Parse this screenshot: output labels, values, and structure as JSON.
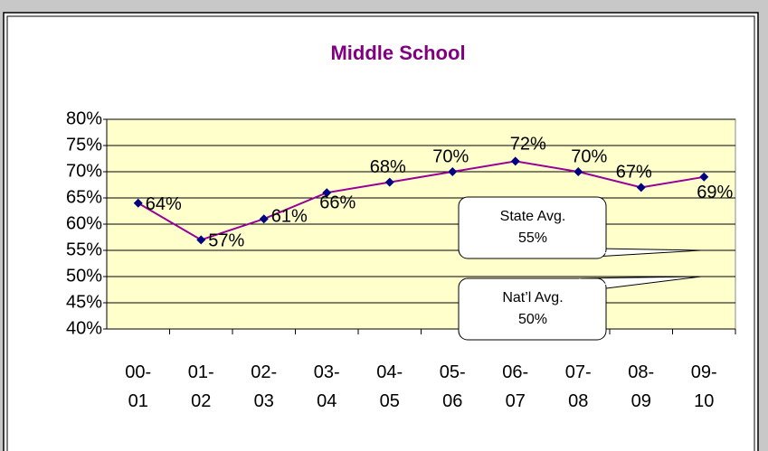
{
  "chart_data": {
    "type": "line",
    "title": "Middle School",
    "categories": [
      "00-\n01",
      "01-\n02",
      "02-\n03",
      "03-\n04",
      "04-\n05",
      "05-\n06",
      "06-\n07",
      "07-\n08",
      "08-\n09",
      "09-\n10"
    ],
    "series": [
      {
        "color": "#990099",
        "marker_color": "#000080",
        "values": [
          64,
          57,
          61,
          66,
          68,
          70,
          72,
          70,
          67,
          69
        ],
        "value_labels": [
          "64%",
          "57%",
          "61%",
          "66%",
          "68%",
          "70%",
          "72%",
          "70%",
          "67%",
          "69%"
        ]
      }
    ],
    "ylim": [
      40,
      80
    ],
    "yticks": [
      {
        "value": 40,
        "label": "40%"
      },
      {
        "value": 45,
        "label": "45%"
      },
      {
        "value": 50,
        "label": "50%"
      },
      {
        "value": 55,
        "label": "55%"
      },
      {
        "value": 60,
        "label": "60%"
      },
      {
        "value": 65,
        "label": "65%"
      },
      {
        "value": 70,
        "label": "70%"
      },
      {
        "value": 75,
        "label": "75%"
      },
      {
        "value": 80,
        "label": "80%"
      }
    ],
    "grid": true,
    "annotations": [
      {
        "text": "State Avg.",
        "value": 55,
        "value_label": "55%"
      },
      {
        "text": "Nat’l Avg.",
        "value": 50,
        "value_label": "50%"
      }
    ]
  }
}
